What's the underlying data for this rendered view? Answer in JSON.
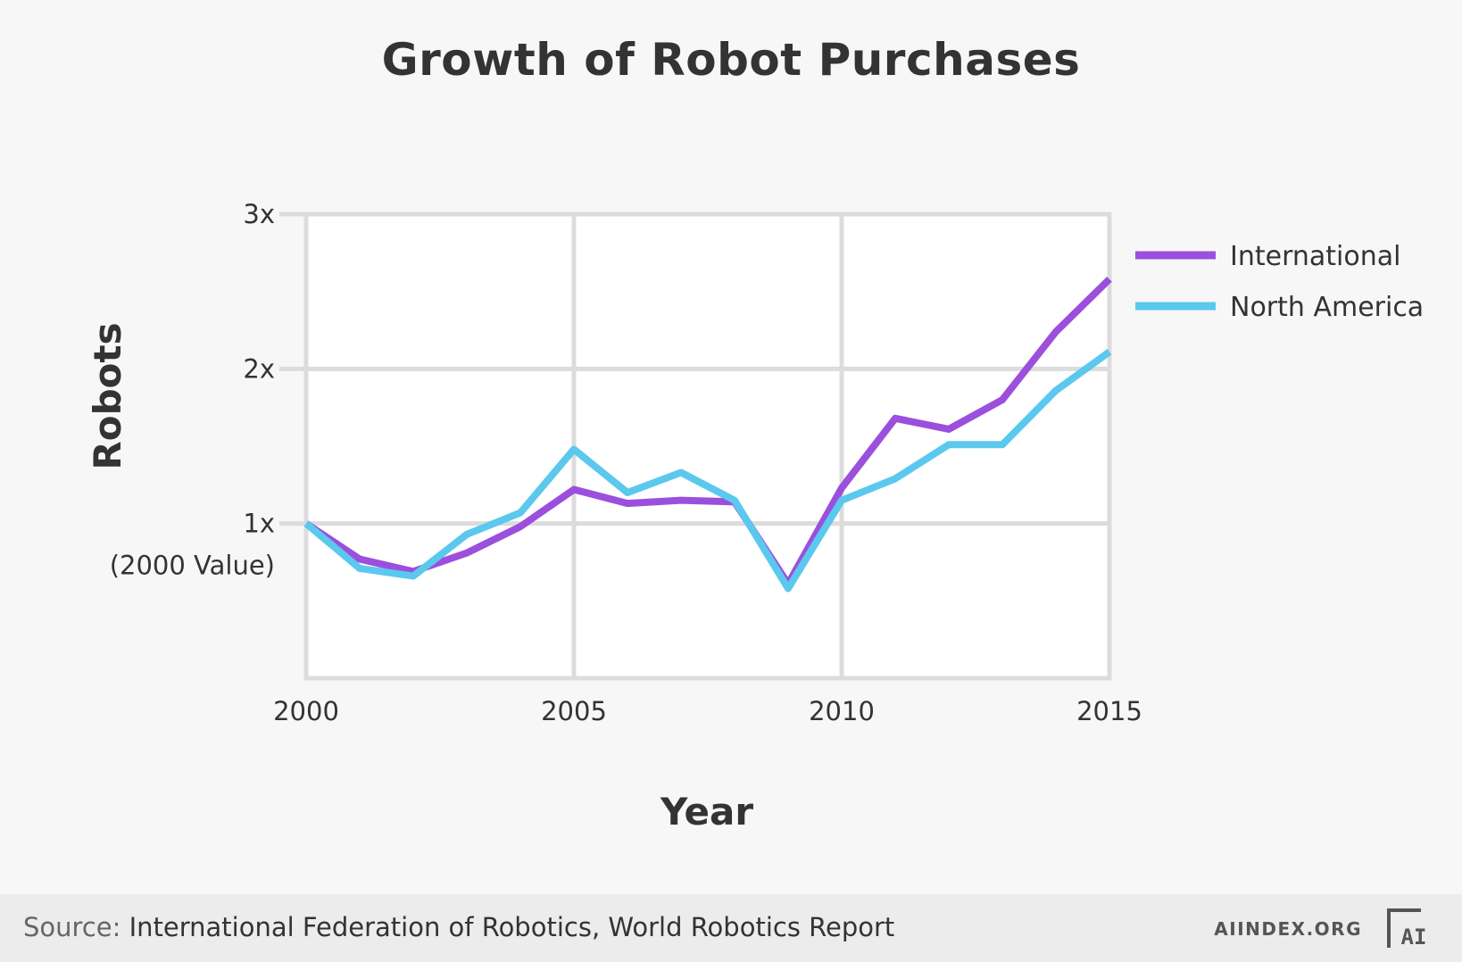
{
  "chart_data": {
    "type": "line",
    "title": "Growth of Robot Purchases",
    "xlabel": "Year",
    "ylabel": "Robots",
    "xlim": [
      2000,
      2015
    ],
    "ylim": [
      0,
      3
    ],
    "x_ticks": [
      {
        "value": 2000,
        "label": "2000"
      },
      {
        "value": 2005,
        "label": "2005"
      },
      {
        "value": 2010,
        "label": "2010"
      },
      {
        "value": 2015,
        "label": "2015"
      }
    ],
    "y_ticks": [
      {
        "value": 1,
        "label": "1x",
        "sublabel": "(2000 Value)"
      },
      {
        "value": 2,
        "label": "2x"
      },
      {
        "value": 3,
        "label": "3x"
      }
    ],
    "grid": true,
    "legend_position": "right",
    "x": [
      2000,
      2001,
      2002,
      2003,
      2004,
      2005,
      2006,
      2007,
      2008,
      2009,
      2010,
      2011,
      2012,
      2013,
      2014,
      2015
    ],
    "series": [
      {
        "name": "International",
        "color": "#9b4fdc",
        "values": [
          1.0,
          0.77,
          0.69,
          0.81,
          0.98,
          1.22,
          1.13,
          1.15,
          1.14,
          0.61,
          1.23,
          1.68,
          1.61,
          1.8,
          2.24,
          2.58
        ]
      },
      {
        "name": "North America",
        "color": "#5bc8ee",
        "values": [
          1.0,
          0.71,
          0.66,
          0.93,
          1.07,
          1.48,
          1.2,
          1.33,
          1.15,
          0.58,
          1.15,
          1.29,
          1.51,
          1.51,
          1.86,
          2.11
        ]
      }
    ]
  },
  "footer": {
    "source_label": "Source:",
    "source_text": "International Federation of Robotics, World Robotics Report",
    "site": "AIINDEX.ORG",
    "logo_text": "AI",
    "logo_icon": "ai-index-logo-icon"
  }
}
